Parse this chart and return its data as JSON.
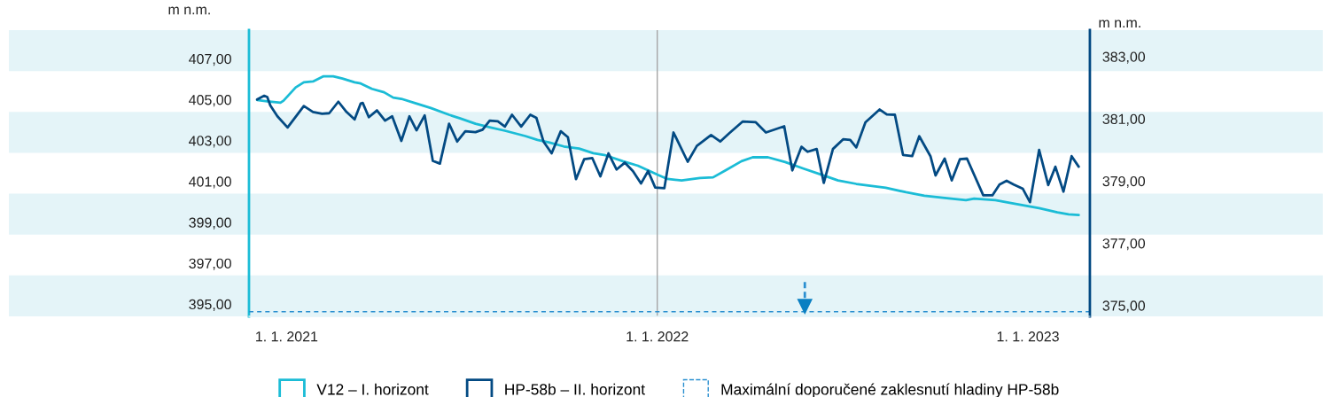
{
  "chart_data": {
    "type": "line",
    "ylabel": "m n.m.",
    "y2label": "m n.m.",
    "xlim": [
      "2020-11-25",
      "2023-03-03"
    ],
    "xticks": [
      {
        "value": "2021-01-01",
        "label": "1. 1. 2021"
      },
      {
        "value": "2022-01-01",
        "label": "1. 1. 2022"
      },
      {
        "value": "2023-01-01",
        "label": "1. 1. 2023"
      }
    ],
    "ylim": [
      394.4,
      408.4
    ],
    "yticks": [
      {
        "value": 395,
        "label": "395,00"
      },
      {
        "value": 397,
        "label": "397,00"
      },
      {
        "value": 399,
        "label": "399,00"
      },
      {
        "value": 401,
        "label": "401,00"
      },
      {
        "value": 403,
        "label": "403,00"
      },
      {
        "value": 405,
        "label": "405,00"
      },
      {
        "value": 407,
        "label": "407,00"
      }
    ],
    "y2lim": [
      374.65,
      383.85
    ],
    "y2ticks": [
      {
        "value": 375,
        "label": "375,00"
      },
      {
        "value": 377,
        "label": "377,00"
      },
      {
        "value": 379,
        "label": "379,00"
      },
      {
        "value": 381,
        "label": "381,00"
      },
      {
        "value": 383,
        "label": "383,00"
      }
    ],
    "grid": false,
    "legend": "bottom",
    "bands": [
      {
        "axis": "y",
        "from": 394.4,
        "to": 396.4,
        "color": "#e4f4f8"
      },
      {
        "axis": "y",
        "from": 398.4,
        "to": 400.4,
        "color": "#e4f4f8"
      },
      {
        "axis": "y",
        "from": 402.4,
        "to": 404.4,
        "color": "#e4f4f8"
      },
      {
        "axis": "y",
        "from": 406.4,
        "to": 408.4,
        "color": "#e4f4f8"
      }
    ],
    "ref_lines": [
      {
        "axis": "x",
        "value": "2022-01-01",
        "color": "#a6a6a6",
        "line_style": "solid"
      },
      {
        "axis": "y2",
        "value": 374.8,
        "label": "Maximální doporučené zaklesnutí hladiny HP-58b",
        "color": "#2a8fd0",
        "line_style": "dashed"
      }
    ],
    "series": [
      {
        "name": "V12 – I. horizont",
        "color": "#1bbcd6",
        "axis": "y",
        "x": [
          "2020-12-03",
          "2020-12-13",
          "2020-12-26",
          "2020-12-29",
          "2021-01-10",
          "2021-01-18",
          "2021-01-27",
          "2021-02-06",
          "2021-02-16",
          "2021-02-25",
          "2021-03-09",
          "2021-03-15",
          "2021-03-26",
          "2021-04-07",
          "2021-04-16",
          "2021-04-24",
          "2021-05-09",
          "2021-05-23",
          "2021-06-10",
          "2021-06-21",
          "2021-07-06",
          "2021-07-20",
          "2021-08-04",
          "2021-08-24",
          "2021-09-05",
          "2021-09-17",
          "2021-10-01",
          "2021-10-16",
          "2021-10-30",
          "2021-11-11",
          "2021-11-28",
          "2021-12-13",
          "2022-01-02",
          "2022-01-11",
          "2022-01-25",
          "2022-02-12",
          "2022-02-25",
          "2022-03-10",
          "2022-03-25",
          "2022-04-05",
          "2022-04-20",
          "2022-05-07",
          "2022-05-25",
          "2022-06-11",
          "2022-06-28",
          "2022-07-16",
          "2022-08-14",
          "2022-09-03",
          "2022-09-21",
          "2022-10-11",
          "2022-11-01",
          "2022-11-09",
          "2022-11-30",
          "2022-12-14",
          "2023-01-12",
          "2023-01-30",
          "2023-02-10",
          "2023-02-20"
        ],
        "values": [
          404.98,
          404.92,
          404.85,
          404.95,
          405.6,
          405.85,
          405.89,
          406.14,
          406.14,
          406.03,
          405.85,
          405.79,
          405.53,
          405.36,
          405.1,
          405.04,
          404.81,
          404.59,
          404.26,
          404.08,
          403.82,
          403.65,
          403.48,
          403.22,
          403.03,
          402.9,
          402.71,
          402.61,
          402.38,
          402.28,
          401.99,
          401.77,
          401.31,
          401.12,
          401.05,
          401.17,
          401.2,
          401.56,
          401.99,
          402.18,
          402.18,
          401.95,
          401.63,
          401.34,
          401.05,
          400.88,
          400.69,
          400.47,
          400.3,
          400.19,
          400.08,
          400.16,
          400.08,
          399.95,
          399.69,
          399.49,
          399.39,
          399.36
        ]
      },
      {
        "name": "HP-58b – II. horizont",
        "color": "#034a83",
        "axis": "y2",
        "x": [
          "2020-12-03",
          "2020-12-10",
          "2020-12-13",
          "2020-12-16",
          "2020-12-23",
          "2021-01-02",
          "2021-01-18",
          "2021-01-27",
          "2021-02-05",
          "2021-02-12",
          "2021-02-21",
          "2021-03-01",
          "2021-03-09",
          "2021-03-15",
          "2021-03-17",
          "2021-03-23",
          "2021-03-31",
          "2021-04-08",
          "2021-04-15",
          "2021-04-24",
          "2021-05-02",
          "2021-05-09",
          "2021-05-17",
          "2021-05-25",
          "2021-06-01",
          "2021-06-10",
          "2021-06-18",
          "2021-06-26",
          "2021-07-06",
          "2021-07-13",
          "2021-07-20",
          "2021-07-28",
          "2021-08-04",
          "2021-08-11",
          "2021-08-20",
          "2021-08-29",
          "2021-09-04",
          "2021-09-11",
          "2021-09-19",
          "2021-09-28",
          "2021-10-05",
          "2021-10-13",
          "2021-10-21",
          "2021-10-29",
          "2021-11-06",
          "2021-11-14",
          "2021-11-22",
          "2021-11-30",
          "2021-12-08",
          "2021-12-16",
          "2021-12-23",
          "2021-12-30",
          "2022-01-08",
          "2022-01-17",
          "2022-01-31",
          "2022-02-09",
          "2022-02-23",
          "2022-03-04",
          "2022-03-13",
          "2022-03-26",
          "2022-04-08",
          "2022-04-18",
          "2022-05-06",
          "2022-05-14",
          "2022-05-23",
          "2022-05-29",
          "2022-06-07",
          "2022-06-14",
          "2022-06-23",
          "2022-07-03",
          "2022-07-10",
          "2022-07-16",
          "2022-07-25",
          "2022-08-08",
          "2022-08-15",
          "2022-08-23",
          "2022-08-31",
          "2022-09-09",
          "2022-09-16",
          "2022-09-27",
          "2022-10-02",
          "2022-10-11",
          "2022-10-18",
          "2022-10-26",
          "2022-11-02",
          "2022-11-18",
          "2022-11-27",
          "2022-12-04",
          "2022-12-11",
          "2022-12-18",
          "2022-12-27",
          "2023-01-03",
          "2023-01-12",
          "2023-01-21",
          "2023-01-28",
          "2023-02-05",
          "2023-02-13",
          "2023-02-20"
        ],
        "values": [
          381.62,
          381.74,
          381.7,
          381.43,
          381.08,
          380.72,
          381.41,
          381.22,
          381.16,
          381.18,
          381.55,
          381.22,
          380.98,
          381.49,
          381.51,
          381.05,
          381.27,
          380.94,
          381.08,
          380.29,
          381.08,
          380.63,
          381.11,
          379.65,
          379.56,
          380.84,
          380.27,
          380.6,
          380.57,
          380.65,
          380.94,
          380.92,
          380.75,
          381.13,
          380.75,
          381.13,
          381.03,
          380.27,
          379.89,
          380.6,
          380.41,
          379.06,
          379.7,
          379.74,
          379.15,
          379.89,
          379.37,
          379.59,
          379.32,
          378.92,
          379.32,
          378.79,
          378.77,
          380.56,
          379.62,
          380.13,
          380.48,
          380.27,
          380.54,
          380.91,
          380.89,
          380.56,
          380.76,
          379.34,
          380.1,
          379.94,
          380.03,
          378.94,
          380.03,
          380.34,
          380.32,
          380.08,
          380.89,
          381.3,
          381.14,
          381.13,
          379.84,
          379.8,
          380.44,
          379.8,
          379.18,
          379.72,
          379.02,
          379.7,
          379.72,
          378.54,
          378.54,
          378.89,
          379.01,
          378.89,
          378.75,
          378.32,
          380.0,
          378.87,
          379.46,
          378.66,
          379.8,
          379.46
        ]
      }
    ]
  }
}
